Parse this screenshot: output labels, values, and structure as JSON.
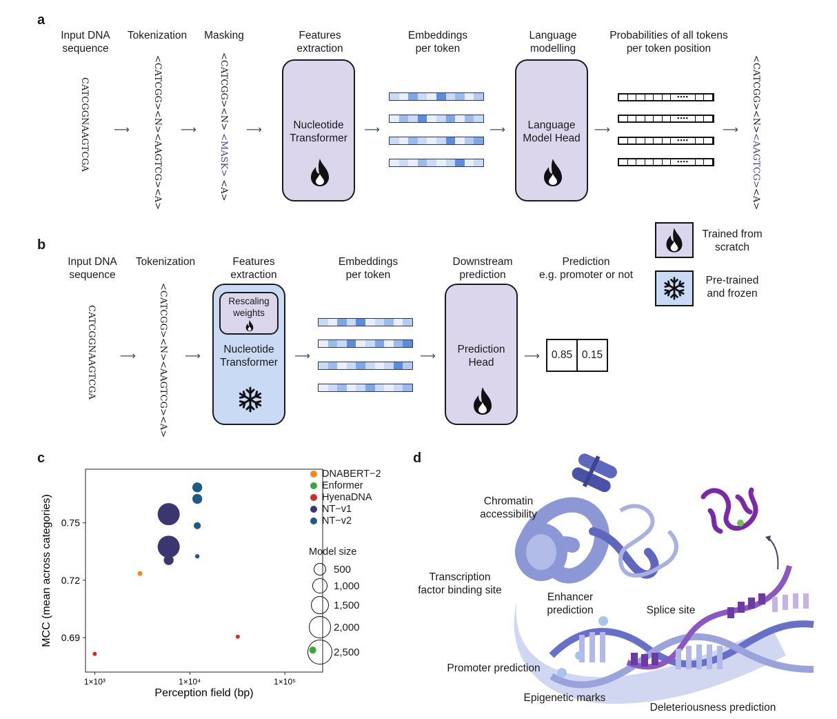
{
  "panels": {
    "a": "a",
    "b": "b",
    "c": "c",
    "d": "d"
  },
  "panel_a": {
    "input_label": [
      "Input DNA",
      "sequence"
    ],
    "tokenization_label": "Tokenization",
    "masking_label": "Masking",
    "features_label": [
      "Features",
      "extraction"
    ],
    "embeddings_label": [
      "Embeddings",
      "per token"
    ],
    "lm_label": [
      "Language",
      "modelling"
    ],
    "prob_label": [
      "Probabilities of all tokens",
      "per token position"
    ],
    "dna_sequence": "CATCGGNAAGTCGA",
    "tokenized": "<CATCGG><N><AAGTCG><A>",
    "masked_prefix": "<CATCGG><N>",
    "masked_token": "<MASK>",
    "masked_suffix": "<A>",
    "nt_box": [
      "Nucleotide",
      "Transformer"
    ],
    "lm_box": [
      "Language",
      "Model Head"
    ],
    "out_prefix": "<CATCGG><N>",
    "out_token": "<AAGTCG>",
    "out_suffix": "<A>"
  },
  "panel_b": {
    "input_label": [
      "Input DNA",
      "sequence"
    ],
    "tokenization_label": "Tokenization",
    "features_label": [
      "Features",
      "extraction"
    ],
    "embeddings_label": [
      "Embeddings",
      "per token"
    ],
    "downstream_label": [
      "Downstream",
      "prediction"
    ],
    "prediction_label": [
      "Prediction",
      "e.g. promoter or not"
    ],
    "dna_sequence": "CATCGGNAAGTCGA",
    "tokenized": "<CATCGG><N><AAGTCG><A>",
    "rescaling": [
      "Rescaling",
      "weights"
    ],
    "nt_box": [
      "Nucleotide",
      "Transformer"
    ],
    "pred_box": [
      "Prediction",
      "Head"
    ],
    "output_values": [
      "0.85",
      "0.15"
    ]
  },
  "legend_ab": {
    "trained": [
      "Trained from",
      "scratch"
    ],
    "frozen": [
      "Pre-trained",
      "and frozen"
    ]
  },
  "chart_data": {
    "type": "scatter",
    "xlabel": "Perception field (bp)",
    "ylabel": "MCC (mean across categories)",
    "x_scale": "log",
    "xlim": [
      800,
      250000
    ],
    "ylim": [
      0.672,
      0.778
    ],
    "x_ticks": [
      1000,
      10000,
      100000
    ],
    "x_tick_labels": [
      "1×10³",
      "1×10⁴",
      "1×10⁵"
    ],
    "y_ticks": [
      0.69,
      0.72,
      0.75
    ],
    "y_tick_labels": [
      "0.69",
      "0.72",
      "0.75"
    ],
    "series": [
      {
        "name": "DNABERT−2",
        "color": "#f08a1c",
        "points": [
          {
            "x": 3000,
            "y": 0.7235,
            "size": 117
          }
        ]
      },
      {
        "name": "Enformer",
        "color": "#3aa83a",
        "points": [
          {
            "x": 196608,
            "y": 0.6835,
            "size": 252
          }
        ]
      },
      {
        "name": "HyenaDNA",
        "color": "#d62a2a",
        "points": [
          {
            "x": 1000,
            "y": 0.6815,
            "size": 7
          },
          {
            "x": 32000,
            "y": 0.6905,
            "size": 7
          }
        ]
      },
      {
        "name": "NT−v1",
        "color": "#3b3570",
        "points": [
          {
            "x": 6000,
            "y": 0.7545,
            "size": 2500
          },
          {
            "x": 6000,
            "y": 0.7375,
            "size": 2500
          },
          {
            "x": 6000,
            "y": 0.7305,
            "size": 500
          }
        ]
      },
      {
        "name": "NT−v2",
        "color": "#1f5a84",
        "points": [
          {
            "x": 12000,
            "y": 0.7685,
            "size": 500
          },
          {
            "x": 12000,
            "y": 0.7625,
            "size": 500
          },
          {
            "x": 12000,
            "y": 0.7485,
            "size": 250
          },
          {
            "x": 12000,
            "y": 0.7325,
            "size": 100
          }
        ]
      }
    ],
    "size_legend_title": "Model size",
    "size_legend": [
      500,
      1000,
      1500,
      2000,
      2500
    ],
    "size_legend_labels": [
      "500",
      "1,000",
      "1,500",
      "2,000",
      "2,500"
    ],
    "legend_position": "right"
  },
  "panel_d": {
    "chromatin": [
      "Chromatin",
      "accessibility"
    ],
    "tf_binding": [
      "Transcription",
      "factor binding site"
    ],
    "enhancer": [
      "Enhancer",
      "prediction"
    ],
    "splice": "Splice site",
    "promoter": "Promoter prediction",
    "epigenetic": "Epigenetic marks",
    "deleterious": "Deleteriousness prediction"
  },
  "colors": {
    "purple_box": "#dcd6ec",
    "blue_box": "#c9daf5",
    "arrow": "#3e4a66",
    "dna_purple": "#8a58c0",
    "dna_blue": "#8c97d6"
  }
}
